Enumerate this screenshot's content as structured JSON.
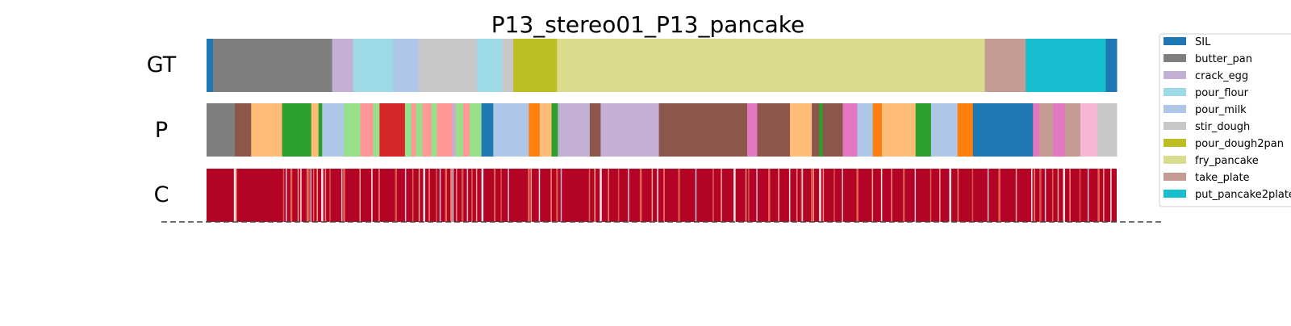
{
  "chart_data": {
    "type": "segmentation",
    "title": "P13_stereo01_P13_pancake",
    "rows": [
      {
        "label": "GT",
        "type": "segments"
      },
      {
        "label": "P",
        "type": "segments"
      },
      {
        "label": "C",
        "type": "confidence"
      }
    ],
    "x_range": [
      0,
      1000
    ],
    "classes": [
      {
        "name": "SIL",
        "color": "#1f77b4"
      },
      {
        "name": "butter_pan",
        "color": "#7f7f7f"
      },
      {
        "name": "crack_egg",
        "color": "#c5b0d5"
      },
      {
        "name": "pour_flour",
        "color": "#9edae5"
      },
      {
        "name": "pour_milk",
        "color": "#aec7e8"
      },
      {
        "name": "stir_dough",
        "color": "#c7c7c7"
      },
      {
        "name": "pour_dough2pan",
        "color": "#bcbd22"
      },
      {
        "name": "fry_pancake",
        "color": "#dbdb8d"
      },
      {
        "name": "take_plate",
        "color": "#c49c94"
      },
      {
        "name": "put_pancake2plate",
        "color": "#17becf"
      }
    ],
    "legend_position": "right",
    "gt_segments": [
      {
        "start": 0,
        "end": 7,
        "color": "#1f77b4"
      },
      {
        "start": 7,
        "end": 138,
        "color": "#7f7f7f"
      },
      {
        "start": 138,
        "end": 161,
        "color": "#c5b0d5"
      },
      {
        "start": 161,
        "end": 205,
        "color": "#9edae5"
      },
      {
        "start": 205,
        "end": 233,
        "color": "#aec7e8"
      },
      {
        "start": 233,
        "end": 297,
        "color": "#c7c7c7"
      },
      {
        "start": 297,
        "end": 325,
        "color": "#9edae5"
      },
      {
        "start": 325,
        "end": 337,
        "color": "#c7c7c7"
      },
      {
        "start": 337,
        "end": 385,
        "color": "#bcbd22"
      },
      {
        "start": 385,
        "end": 855,
        "color": "#dbdb8d"
      },
      {
        "start": 855,
        "end": 900,
        "color": "#c49c94"
      },
      {
        "start": 900,
        "end": 988,
        "color": "#17becf"
      },
      {
        "start": 988,
        "end": 1000,
        "color": "#1f77b4"
      }
    ],
    "p_segments": [
      {
        "start": 0,
        "end": 31,
        "color": "#7f7f7f"
      },
      {
        "start": 31,
        "end": 49,
        "color": "#8c564b"
      },
      {
        "start": 49,
        "end": 83,
        "color": "#ffbb78"
      },
      {
        "start": 83,
        "end": 115,
        "color": "#2ca02c"
      },
      {
        "start": 115,
        "end": 123,
        "color": "#ffbb78"
      },
      {
        "start": 123,
        "end": 127,
        "color": "#2ca02c"
      },
      {
        "start": 127,
        "end": 151,
        "color": "#aec7e8"
      },
      {
        "start": 151,
        "end": 169,
        "color": "#98df8a"
      },
      {
        "start": 169,
        "end": 183,
        "color": "#ff9896"
      },
      {
        "start": 183,
        "end": 190,
        "color": "#98df8a"
      },
      {
        "start": 190,
        "end": 218,
        "color": "#d62728"
      },
      {
        "start": 218,
        "end": 225,
        "color": "#98df8a"
      },
      {
        "start": 225,
        "end": 230,
        "color": "#ff9896"
      },
      {
        "start": 230,
        "end": 237,
        "color": "#98df8a"
      },
      {
        "start": 237,
        "end": 247,
        "color": "#ff9896"
      },
      {
        "start": 247,
        "end": 253,
        "color": "#98df8a"
      },
      {
        "start": 253,
        "end": 270,
        "color": "#ff9896"
      },
      {
        "start": 270,
        "end": 274,
        "color": "#c5b0d5"
      },
      {
        "start": 274,
        "end": 282,
        "color": "#98df8a"
      },
      {
        "start": 282,
        "end": 289,
        "color": "#ff9896"
      },
      {
        "start": 289,
        "end": 302,
        "color": "#98df8a"
      },
      {
        "start": 302,
        "end": 315,
        "color": "#1f77b4"
      },
      {
        "start": 315,
        "end": 354,
        "color": "#aec7e8"
      },
      {
        "start": 354,
        "end": 366,
        "color": "#ff7f0e"
      },
      {
        "start": 366,
        "end": 379,
        "color": "#ffbb78"
      },
      {
        "start": 379,
        "end": 386,
        "color": "#2ca02c"
      },
      {
        "start": 386,
        "end": 421,
        "color": "#c5b0d5"
      },
      {
        "start": 421,
        "end": 433,
        "color": "#8c564b"
      },
      {
        "start": 433,
        "end": 497,
        "color": "#c5b0d5"
      },
      {
        "start": 497,
        "end": 594,
        "color": "#8c564b"
      },
      {
        "start": 594,
        "end": 605,
        "color": "#e377c2"
      },
      {
        "start": 605,
        "end": 641,
        "color": "#8c564b"
      },
      {
        "start": 641,
        "end": 665,
        "color": "#ffbb78"
      },
      {
        "start": 665,
        "end": 673,
        "color": "#8c564b"
      },
      {
        "start": 673,
        "end": 677,
        "color": "#2ca02c"
      },
      {
        "start": 677,
        "end": 699,
        "color": "#8c564b"
      },
      {
        "start": 699,
        "end": 715,
        "color": "#e377c2"
      },
      {
        "start": 715,
        "end": 732,
        "color": "#aec7e8"
      },
      {
        "start": 732,
        "end": 742,
        "color": "#ff7f0e"
      },
      {
        "start": 742,
        "end": 779,
        "color": "#ffbb78"
      },
      {
        "start": 779,
        "end": 796,
        "color": "#2ca02c"
      },
      {
        "start": 796,
        "end": 825,
        "color": "#aec7e8"
      },
      {
        "start": 825,
        "end": 842,
        "color": "#ff7f0e"
      },
      {
        "start": 842,
        "end": 908,
        "color": "#1f77b4"
      },
      {
        "start": 908,
        "end": 915,
        "color": "#e377c2"
      },
      {
        "start": 915,
        "end": 930,
        "color": "#c49c94"
      },
      {
        "start": 930,
        "end": 943,
        "color": "#e377c2"
      },
      {
        "start": 943,
        "end": 960,
        "color": "#c49c94"
      },
      {
        "start": 960,
        "end": 979,
        "color": "#f7b6d2"
      },
      {
        "start": 979,
        "end": 1000,
        "color": "#c7c7c7"
      }
    ],
    "confidence_low_positions": [
      30,
      32,
      84,
      87,
      92,
      100,
      103,
      110,
      111,
      114,
      117,
      121,
      126,
      130,
      135,
      148,
      150,
      168,
      181,
      189,
      207,
      218,
      226,
      233,
      238,
      244,
      252,
      256,
      262,
      268,
      270,
      274,
      280,
      286,
      291,
      296,
      302,
      316,
      323,
      331,
      353,
      356,
      365,
      378,
      384,
      389,
      420,
      426,
      432,
      441,
      452,
      463,
      476,
      489,
      495,
      502,
      518,
      537,
      556,
      565,
      579,
      592,
      595,
      604,
      617,
      628,
      640,
      648,
      653,
      654,
      664,
      666,
      673,
      677,
      689,
      698,
      714,
      731,
      741,
      752,
      765,
      778,
      795,
      805,
      816,
      825,
      841,
      858,
      870,
      889,
      906,
      909,
      915,
      921,
      929,
      935,
      941,
      948,
      959,
      968,
      979,
      985,
      993
    ]
  }
}
